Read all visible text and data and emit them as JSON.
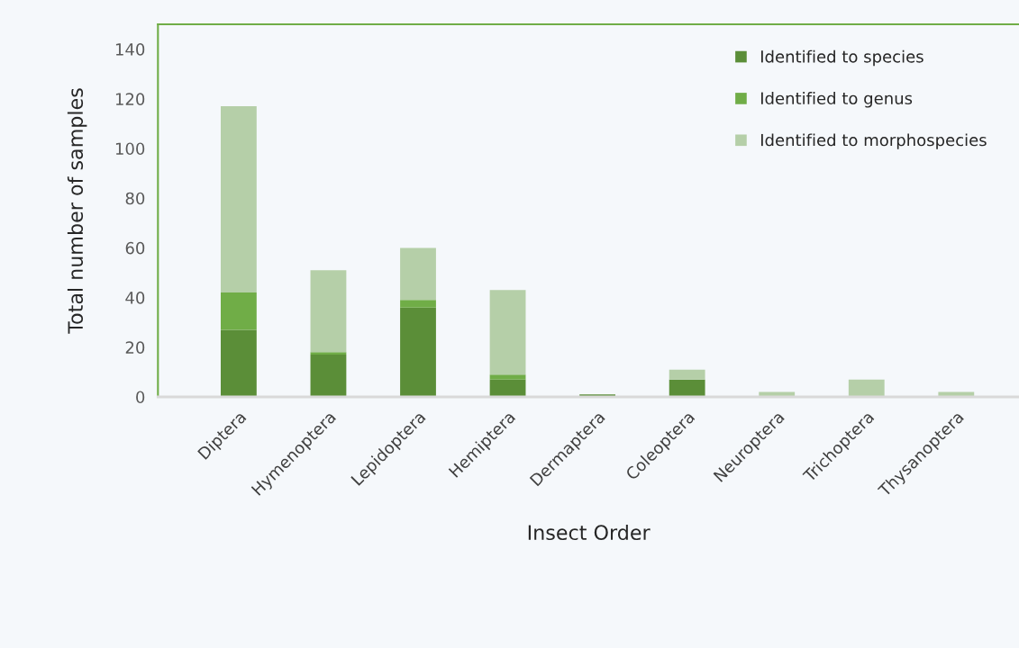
{
  "chart_data": {
    "type": "bar",
    "stacked": true,
    "xlabel": "Insect Order",
    "ylabel": "Total number of samples",
    "categories": [
      "Diptera",
      "Hymenoptera",
      "Lepidoptera",
      "Hemiptera",
      "Dermaptera",
      "Coleoptera",
      "Neuroptera",
      "Trichoptera",
      "Thysanoptera"
    ],
    "series": [
      {
        "name": "Identified to species",
        "color": "#5b8e38",
        "values": [
          27,
          17,
          36,
          7,
          1,
          7,
          0,
          0,
          0
        ]
      },
      {
        "name": "Identified to genus",
        "color": "#70ad47",
        "values": [
          15,
          1,
          3,
          2,
          0,
          0,
          0,
          0,
          0
        ]
      },
      {
        "name": "Identified to morphospecies",
        "color": "#b5cfa8",
        "values": [
          75,
          33,
          21,
          34,
          0,
          4,
          2,
          7,
          2
        ]
      }
    ],
    "ylim": [
      0,
      150
    ],
    "yticks": [
      0,
      20,
      40,
      60,
      80,
      100,
      120,
      140
    ],
    "grid": false,
    "legend": "top right"
  }
}
